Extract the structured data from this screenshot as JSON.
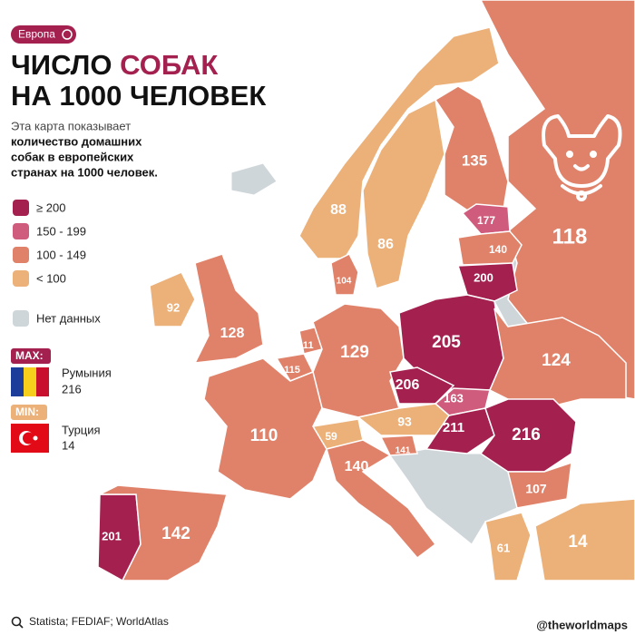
{
  "badge": "Европа",
  "title": {
    "line1": "ЧИСЛО",
    "highlight": "СОБАК",
    "line2": "НА 1000 ЧЕЛОВЕК"
  },
  "description": {
    "normal": "Эта карта показывает",
    "bold": [
      "количество домашних",
      "собак в европейских",
      "странах на 1000 человек."
    ]
  },
  "legend": [
    {
      "label": "≥ 200",
      "color": "#a3204f"
    },
    {
      "label": "150 - 199",
      "color": "#cf5c7d"
    },
    {
      "label": "100 - 149",
      "color": "#e0826a"
    },
    {
      "label": "< 100",
      "color": "#ecb079"
    }
  ],
  "no_data": {
    "label": "Нет данных",
    "color": "#cfd6da"
  },
  "max": {
    "tag": "MAX:",
    "country": "Румыния",
    "value": 216
  },
  "min": {
    "tag": "MIN:",
    "country": "Турция",
    "value": 14
  },
  "regions": [
    {
      "value": 118,
      "color": "#e0826a"
    },
    {
      "value": 135,
      "color": "#e0826a"
    },
    {
      "value": 88,
      "color": "#ecb079"
    },
    {
      "value": 86,
      "color": "#ecb079"
    },
    {
      "value": 177,
      "color": "#cf5c7d"
    },
    {
      "value": 140,
      "color": "#e0826a"
    },
    {
      "value": 200,
      "color": "#a3204f"
    },
    {
      "value": 104,
      "color": "#e0826a"
    },
    {
      "value": 92,
      "color": "#ecb079"
    },
    {
      "value": 128,
      "color": "#e0826a"
    },
    {
      "value": 111,
      "color": "#e0826a"
    },
    {
      "value": 115,
      "color": "#e0826a"
    },
    {
      "value": 129,
      "color": "#e0826a"
    },
    {
      "value": 205,
      "color": "#a3204f"
    },
    {
      "value": 206,
      "color": "#a3204f"
    },
    {
      "value": 163,
      "color": "#cf5c7d"
    },
    {
      "value": 124,
      "color": "#e0826a"
    },
    {
      "value": 93,
      "color": "#ecb079"
    },
    {
      "value": 211,
      "color": "#a3204f"
    },
    {
      "value": 216,
      "color": "#a3204f"
    },
    {
      "value": 59,
      "color": "#ecb079"
    },
    {
      "value": 141,
      "color": "#e0826a"
    },
    {
      "value": 110,
      "color": "#e0826a"
    },
    {
      "value": 140,
      "color": "#e0826a"
    },
    {
      "value": 107,
      "color": "#e0826a"
    },
    {
      "value": 201,
      "color": "#a3204f"
    },
    {
      "value": 142,
      "color": "#e0826a"
    },
    {
      "value": 61,
      "color": "#ecb079"
    },
    {
      "value": 14,
      "color": "#ecb079"
    }
  ],
  "source": "Statista; FEDIAF; WorldAtlas",
  "credit": "@theworldmaps"
}
